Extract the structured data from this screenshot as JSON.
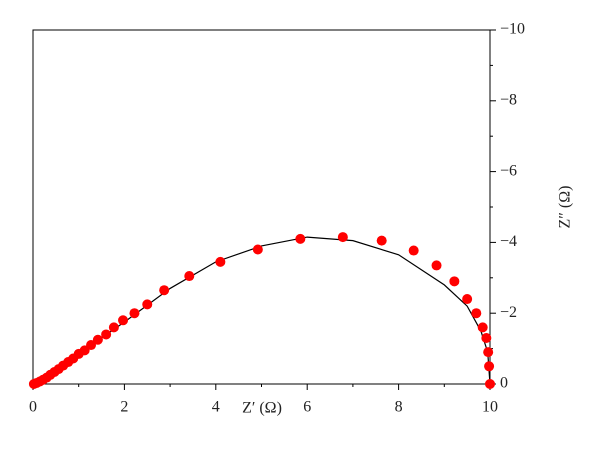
{
  "chart_data": {
    "type": "scatter",
    "xlabel": "Z′ (Ω)",
    "ylabel": "Z″ (Ω)",
    "xlim": [
      0,
      10
    ],
    "xticks": [
      0,
      2,
      4,
      6,
      8,
      10
    ],
    "xminorticks": [
      1,
      3,
      5,
      7,
      9
    ],
    "ylim": [
      0,
      -10
    ],
    "yticks": [
      0,
      {
        "value": -2,
        "label": "−2"
      },
      {
        "value": -4,
        "label": "−4"
      },
      {
        "value": -6,
        "label": "−6"
      },
      {
        "value": -8,
        "label": "−8"
      },
      {
        "value": -10,
        "label": "−10"
      }
    ],
    "yminorticks": [
      -1,
      -3,
      -5,
      -7,
      -9
    ],
    "y_axis_side": "right",
    "series": [
      {
        "type": "scatter",
        "color": "#ff0000",
        "x": [
          10,
          9.98,
          9.96,
          9.92,
          9.84,
          9.7,
          9.5,
          9.22,
          8.83,
          8.33,
          7.63,
          6.78,
          5.85,
          4.92,
          4.1,
          3.42,
          2.87,
          2.5,
          2.22,
          1.97,
          1.77,
          1.6,
          1.42,
          1.27,
          1.13,
          1.0,
          0.88,
          0.77,
          0.66,
          0.56,
          0.47,
          0.38,
          0.3,
          0.22,
          0.15,
          0.08,
          0.02
        ],
        "values": [
          0,
          -0.5,
          -0.9,
          -1.3,
          -1.6,
          -2.0,
          -2.4,
          -2.9,
          -3.35,
          -3.77,
          -4.05,
          -4.15,
          -4.1,
          -3.8,
          -3.45,
          -3.05,
          -2.65,
          -2.25,
          -2.0,
          -1.8,
          -1.6,
          -1.4,
          -1.25,
          -1.1,
          -0.95,
          -0.85,
          -0.72,
          -0.62,
          -0.52,
          -0.42,
          -0.34,
          -0.26,
          -0.18,
          -0.12,
          -0.07,
          -0.03,
          0
        ]
      },
      {
        "type": "line",
        "color": "#000000",
        "x": [
          0,
          1,
          2,
          3,
          4,
          5,
          6,
          7,
          8,
          9,
          9.5,
          9.8,
          9.95,
          10
        ],
        "values": [
          0,
          -0.85,
          -1.75,
          -2.7,
          -3.45,
          -3.9,
          -4.15,
          -4.05,
          -3.65,
          -2.8,
          -2.2,
          -1.5,
          -0.9,
          0
        ]
      }
    ]
  }
}
